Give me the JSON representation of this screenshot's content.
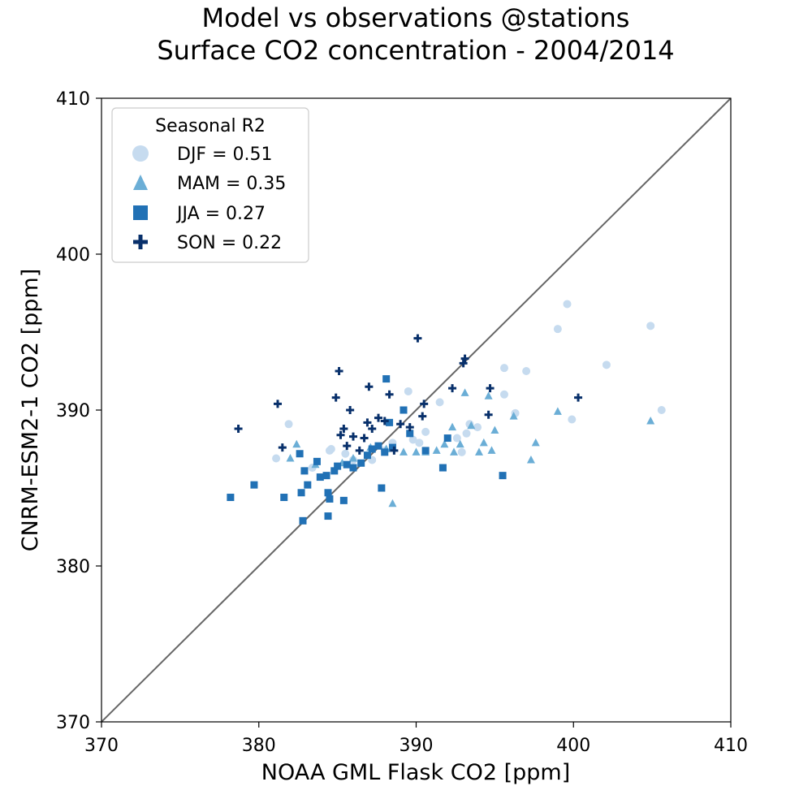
{
  "chart_data": {
    "type": "scatter",
    "title": "Model vs observations @stations",
    "subtitle": "Surface CO2 concentration - 2004/2014",
    "xlabel": "NOAA GML Flask CO2 [ppm]",
    "ylabel": "CNRM-ESM2-1 CO2 [ppm]",
    "xlim": [
      370,
      410
    ],
    "ylim": [
      370,
      410
    ],
    "xticks": [
      "370",
      "380",
      "390",
      "400",
      "410"
    ],
    "yticks": [
      "370",
      "380",
      "390",
      "400",
      "410"
    ],
    "grid": false,
    "reference_line": "1:1",
    "legend": {
      "title": "Seasonal R2",
      "placement": "top-left"
    },
    "series": [
      {
        "name": "DJF = 0.51",
        "marker": "circle",
        "color": "#c6dbef",
        "points": [
          [
            381.1,
            386.9
          ],
          [
            381.9,
            389.1
          ],
          [
            383.4,
            386.3
          ],
          [
            384.5,
            387.4
          ],
          [
            384.6,
            387.5
          ],
          [
            385.5,
            387.2
          ],
          [
            386.0,
            386.8
          ],
          [
            387.2,
            386.8
          ],
          [
            388.0,
            387.4
          ],
          [
            388.5,
            387.9
          ],
          [
            389.5,
            391.2
          ],
          [
            389.8,
            388.1
          ],
          [
            390.2,
            387.9
          ],
          [
            390.6,
            388.6
          ],
          [
            391.5,
            390.5
          ],
          [
            392.6,
            388.2
          ],
          [
            392.9,
            387.3
          ],
          [
            393.2,
            388.5
          ],
          [
            393.4,
            389.1
          ],
          [
            393.9,
            388.9
          ],
          [
            395.6,
            392.7
          ],
          [
            395.6,
            391.0
          ],
          [
            396.3,
            389.8
          ],
          [
            397.0,
            392.5
          ],
          [
            399.0,
            395.2
          ],
          [
            399.6,
            396.8
          ],
          [
            399.9,
            389.4
          ],
          [
            402.1,
            392.9
          ],
          [
            404.9,
            395.4
          ],
          [
            405.6,
            390.0
          ]
        ]
      },
      {
        "name": "MAM = 0.35",
        "marker": "triangle",
        "color": "#6baed6",
        "points": [
          [
            382.0,
            386.9
          ],
          [
            382.4,
            387.8
          ],
          [
            383.6,
            386.5
          ],
          [
            385.3,
            386.6
          ],
          [
            386.0,
            386.9
          ],
          [
            387.1,
            387.6
          ],
          [
            388.1,
            387.5
          ],
          [
            388.5,
            384.0
          ],
          [
            389.2,
            387.3
          ],
          [
            390.0,
            387.3
          ],
          [
            390.6,
            387.3
          ],
          [
            391.3,
            387.4
          ],
          [
            391.8,
            387.8
          ],
          [
            392.3,
            388.9
          ],
          [
            392.4,
            387.3
          ],
          [
            392.8,
            387.8
          ],
          [
            393.1,
            391.1
          ],
          [
            393.5,
            389.0
          ],
          [
            394.0,
            387.3
          ],
          [
            394.3,
            387.9
          ],
          [
            394.6,
            390.9
          ],
          [
            394.8,
            387.4
          ],
          [
            395.0,
            388.7
          ],
          [
            396.2,
            389.6
          ],
          [
            397.3,
            386.8
          ],
          [
            397.6,
            387.9
          ],
          [
            399.0,
            389.9
          ],
          [
            404.9,
            389.3
          ]
        ]
      },
      {
        "name": "JJA = 0.27",
        "marker": "square",
        "color": "#2171b5",
        "points": [
          [
            378.2,
            384.4
          ],
          [
            379.7,
            385.2
          ],
          [
            381.6,
            384.4
          ],
          [
            382.6,
            387.2
          ],
          [
            382.7,
            384.7
          ],
          [
            382.8,
            382.9
          ],
          [
            382.9,
            386.1
          ],
          [
            383.1,
            385.2
          ],
          [
            383.7,
            386.7
          ],
          [
            383.9,
            385.7
          ],
          [
            384.3,
            385.8
          ],
          [
            384.4,
            384.7
          ],
          [
            384.4,
            383.2
          ],
          [
            384.5,
            384.3
          ],
          [
            384.8,
            386.1
          ],
          [
            385.0,
            386.4
          ],
          [
            385.4,
            384.2
          ],
          [
            385.6,
            386.5
          ],
          [
            386.0,
            386.3
          ],
          [
            386.5,
            386.6
          ],
          [
            386.9,
            387.1
          ],
          [
            387.2,
            387.5
          ],
          [
            387.6,
            387.7
          ],
          [
            387.8,
            385.0
          ],
          [
            388.0,
            387.3
          ],
          [
            388.1,
            392.0
          ],
          [
            388.3,
            389.2
          ],
          [
            388.5,
            387.6
          ],
          [
            389.2,
            390.0
          ],
          [
            389.6,
            388.5
          ],
          [
            390.6,
            387.4
          ],
          [
            391.7,
            386.3
          ],
          [
            392.0,
            388.2
          ],
          [
            395.5,
            385.8
          ]
        ]
      },
      {
        "name": "SON = 0.22",
        "marker": "plus",
        "color": "#08306b",
        "points": [
          [
            378.7,
            388.8
          ],
          [
            381.2,
            390.4
          ],
          [
            381.5,
            387.6
          ],
          [
            384.9,
            390.8
          ],
          [
            385.1,
            392.5
          ],
          [
            385.2,
            388.4
          ],
          [
            385.4,
            388.8
          ],
          [
            385.6,
            387.7
          ],
          [
            385.8,
            390.0
          ],
          [
            386.0,
            388.3
          ],
          [
            386.4,
            387.4
          ],
          [
            386.7,
            388.2
          ],
          [
            386.9,
            389.2
          ],
          [
            387.0,
            391.5
          ],
          [
            387.2,
            388.8
          ],
          [
            387.6,
            389.5
          ],
          [
            388.0,
            389.3
          ],
          [
            388.3,
            391.0
          ],
          [
            388.6,
            387.4
          ],
          [
            389.0,
            389.1
          ],
          [
            389.6,
            388.9
          ],
          [
            390.1,
            394.6
          ],
          [
            390.4,
            389.6
          ],
          [
            390.5,
            390.4
          ],
          [
            392.3,
            391.4
          ],
          [
            393.0,
            393.0
          ],
          [
            393.1,
            393.3
          ],
          [
            394.6,
            389.7
          ],
          [
            394.7,
            391.4
          ],
          [
            400.3,
            390.8
          ]
        ]
      }
    ]
  }
}
